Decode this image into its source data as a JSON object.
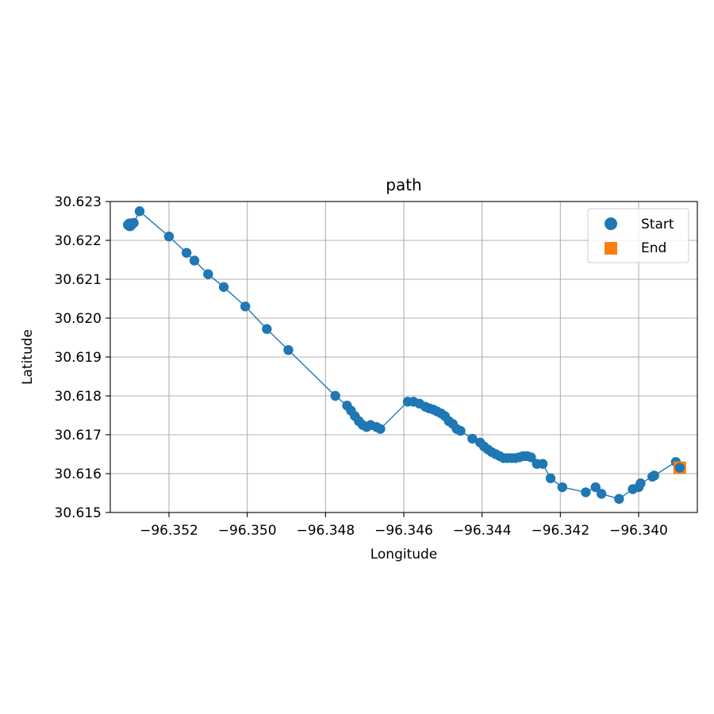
{
  "chart_data": {
    "type": "scatter",
    "title": "path",
    "xlabel": "Longitude",
    "ylabel": "Latitude",
    "xlim": [
      -96.3535,
      -96.3385
    ],
    "ylim": [
      30.615,
      30.623
    ],
    "x_ticks": [
      -96.352,
      -96.35,
      -96.348,
      -96.346,
      -96.344,
      -96.342,
      -96.34
    ],
    "x_tick_labels": [
      "−96.352",
      "−96.350",
      "−96.348",
      "−96.346",
      "−96.344",
      "−96.342",
      "−96.340"
    ],
    "y_ticks": [
      30.615,
      30.616,
      30.617,
      30.618,
      30.619,
      30.62,
      30.621,
      30.622,
      30.623
    ],
    "y_tick_labels": [
      "30.615",
      "30.616",
      "30.617",
      "30.618",
      "30.619",
      "30.620",
      "30.621",
      "30.622",
      "30.623"
    ],
    "grid": true,
    "legend_placement": "top-right",
    "colors": {
      "path": "#1f77b4",
      "start": "#1f77b4",
      "end": "#ff7f0e"
    },
    "series": [
      {
        "marker": "circle",
        "line": true,
        "points": [
          [
            -96.35305,
            30.6224
          ],
          [
            -96.3529,
            30.62245
          ],
          [
            -96.35275,
            30.62275
          ],
          [
            -96.352,
            30.6221
          ],
          [
            -96.35155,
            30.62168
          ],
          [
            -96.35135,
            30.62148
          ],
          [
            -96.351,
            30.62113
          ],
          [
            -96.3506,
            30.6208
          ],
          [
            -96.35005,
            30.6203
          ],
          [
            -96.3495,
            30.61972
          ],
          [
            -96.34895,
            30.61918
          ],
          [
            -96.34775,
            30.618
          ],
          [
            -96.34745,
            30.61775
          ],
          [
            -96.34735,
            30.61762
          ],
          [
            -96.34725,
            30.61748
          ],
          [
            -96.34715,
            30.61735
          ],
          [
            -96.34705,
            30.61725
          ],
          [
            -96.34695,
            30.6172
          ],
          [
            -96.34685,
            30.61725
          ],
          [
            -96.3467,
            30.6172
          ],
          [
            -96.3466,
            30.61715
          ],
          [
            -96.3459,
            30.61785
          ],
          [
            -96.34575,
            30.61785
          ],
          [
            -96.3456,
            30.6178
          ],
          [
            -96.34545,
            30.61772
          ],
          [
            -96.34535,
            30.61768
          ],
          [
            -96.34525,
            30.61765
          ],
          [
            -96.34515,
            30.6176
          ],
          [
            -96.34505,
            30.61755
          ],
          [
            -96.34495,
            30.61748
          ],
          [
            -96.34485,
            30.61735
          ],
          [
            -96.34475,
            30.61728
          ],
          [
            -96.34465,
            30.61715
          ],
          [
            -96.34455,
            30.6171
          ],
          [
            -96.34425,
            30.6169
          ],
          [
            -96.34405,
            30.6168
          ],
          [
            -96.34395,
            30.6167
          ],
          [
            -96.34385,
            30.61662
          ],
          [
            -96.34375,
            30.61655
          ],
          [
            -96.34365,
            30.6165
          ],
          [
            -96.34355,
            30.61645
          ],
          [
            -96.34345,
            30.6164
          ],
          [
            -96.34335,
            30.6164
          ],
          [
            -96.34325,
            30.6164
          ],
          [
            -96.34315,
            30.6164
          ],
          [
            -96.34305,
            30.61642
          ],
          [
            -96.34295,
            30.61645
          ],
          [
            -96.34285,
            30.61645
          ],
          [
            -96.34275,
            30.61642
          ],
          [
            -96.3426,
            30.61625
          ],
          [
            -96.34245,
            30.61625
          ],
          [
            -96.34225,
            30.61588
          ],
          [
            -96.34195,
            30.61565
          ],
          [
            -96.34135,
            30.61552
          ],
          [
            -96.3411,
            30.61565
          ],
          [
            -96.34095,
            30.61548
          ],
          [
            -96.3405,
            30.61535
          ],
          [
            -96.34015,
            30.6156
          ],
          [
            -96.34,
            30.61565
          ],
          [
            -96.33995,
            30.61575
          ],
          [
            -96.33965,
            30.61592
          ],
          [
            -96.3396,
            30.61595
          ],
          [
            -96.33905,
            30.6163
          ],
          [
            -96.33895,
            30.61615
          ]
        ]
      },
      {
        "name": "Start",
        "marker": "circle",
        "points": [
          [
            -96.353,
            30.6224
          ]
        ]
      },
      {
        "name": "End",
        "marker": "square",
        "points": [
          [
            -96.33895,
            30.61615
          ]
        ]
      }
    ]
  }
}
